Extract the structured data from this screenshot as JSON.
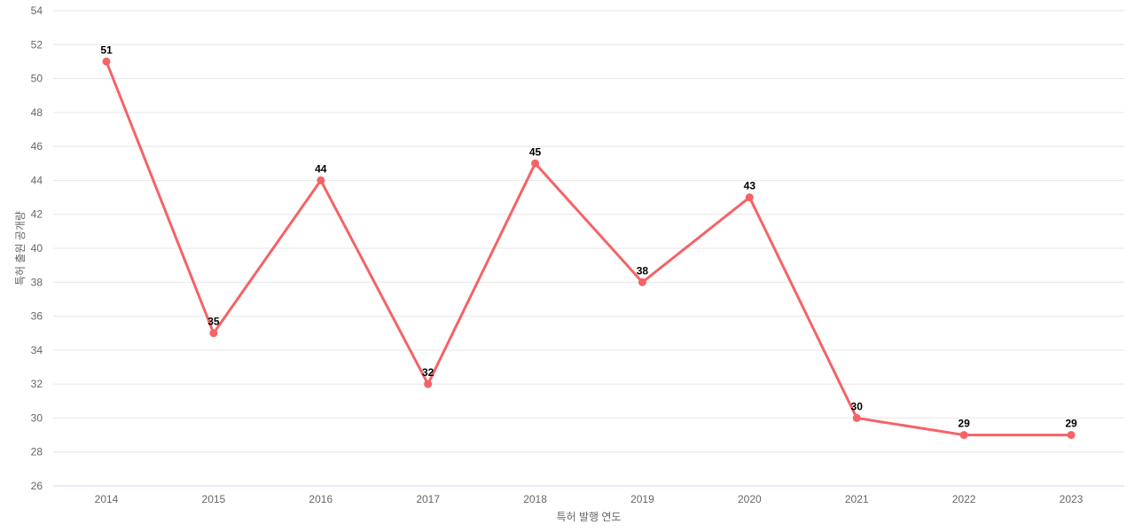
{
  "chart_data": {
    "type": "line",
    "title": "",
    "categories": [
      "2014",
      "2015",
      "2016",
      "2017",
      "2018",
      "2019",
      "2020",
      "2021",
      "2022",
      "2023"
    ],
    "series": [
      {
        "name": "특허 출원 공개량",
        "values": [
          51,
          35,
          44,
          32,
          45,
          38,
          43,
          30,
          29,
          29
        ]
      }
    ],
    "data_labels": [
      "51",
      "35",
      "44",
      "32",
      "45",
      "38",
      "43",
      "30",
      "29",
      "29"
    ],
    "xlabel": "특허 발행 연도",
    "ylabel": "특허 출원 공개량",
    "ylim": [
      26,
      54
    ],
    "ytick_step": 2,
    "ytick_labels": [
      "26",
      "28",
      "30",
      "32",
      "34",
      "36",
      "38",
      "40",
      "42",
      "44",
      "46",
      "48",
      "50",
      "52",
      "54"
    ],
    "grid": true,
    "legend_position": "none",
    "colors": {
      "line": "#f56366",
      "marker": "#f56366",
      "data_label": "#000000",
      "tick_label": "#666666",
      "axis_title": "#666666",
      "gridline": "#e6e6e6",
      "axis_line": "#ccd6eb",
      "background": "#ffffff"
    }
  }
}
